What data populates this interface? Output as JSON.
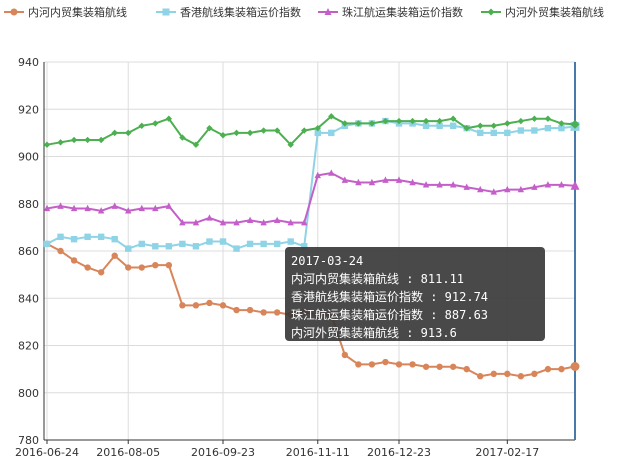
{
  "chart_data": {
    "type": "line",
    "title": "",
    "xlabel": "",
    "ylabel": "",
    "ylim": [
      780,
      940
    ],
    "yticks": [
      780,
      800,
      820,
      840,
      860,
      880,
      900,
      920,
      940
    ],
    "x_tick_labels": [
      "2016-06-24",
      "2016-08-05",
      "2016-09-23",
      "2016-11-11",
      "2016-12-23",
      "2017-02-17"
    ],
    "grid": true,
    "legend_position": "top",
    "x": [
      "2016-06-24",
      "2016-07-01",
      "2016-07-08",
      "2016-07-15",
      "2016-07-22",
      "2016-07-29",
      "2016-08-05",
      "2016-08-12",
      "2016-08-19",
      "2016-08-26",
      "2016-09-02",
      "2016-09-09",
      "2016-09-16",
      "2016-09-23",
      "2016-09-30",
      "2016-10-07",
      "2016-10-14",
      "2016-10-21",
      "2016-10-28",
      "2016-11-04",
      "2016-11-11",
      "2016-11-18",
      "2016-11-25",
      "2016-12-02",
      "2016-12-09",
      "2016-12-16",
      "2016-12-23",
      "2016-12-30",
      "2017-01-06",
      "2017-01-13",
      "2017-01-20",
      "2017-01-27",
      "2017-02-03",
      "2017-02-10",
      "2017-02-17",
      "2017-02-24",
      "2017-03-03",
      "2017-03-10",
      "2017-03-17",
      "2017-03-24"
    ],
    "series": [
      {
        "name": "内河内贸集装箱航线",
        "color": "#d9855a",
        "marker": "circle",
        "values": [
          863,
          860,
          856,
          853,
          851,
          858,
          853,
          853,
          854,
          854,
          837,
          837,
          838,
          837,
          835,
          835,
          834,
          834,
          833,
          834,
          833,
          833,
          816,
          812,
          812,
          813,
          812,
          812,
          811,
          811,
          811,
          810,
          807,
          808,
          808,
          807,
          808,
          810,
          810,
          811.11
        ]
      },
      {
        "name": "香港航线集装箱运价指数",
        "color": "#8fd3e6",
        "marker": "square",
        "values": [
          863,
          866,
          865,
          866,
          866,
          865,
          861,
          863,
          862,
          862,
          863,
          862,
          864,
          864,
          861,
          863,
          863,
          863,
          864,
          862,
          910,
          910,
          913,
          914,
          914,
          915,
          914,
          914,
          913,
          913,
          913,
          912,
          910,
          910,
          910,
          911,
          911,
          912,
          912,
          912.74
        ]
      },
      {
        "name": "珠江航运集装箱运价指数",
        "color": "#c45fc9",
        "marker": "triangle",
        "values": [
          878,
          879,
          878,
          878,
          877,
          879,
          877,
          878,
          878,
          879,
          872,
          872,
          874,
          872,
          872,
          873,
          872,
          873,
          872,
          872,
          892,
          893,
          890,
          889,
          889,
          890,
          890,
          889,
          888,
          888,
          888,
          887,
          886,
          885,
          886,
          886,
          887,
          888,
          888,
          887.63
        ]
      },
      {
        "name": "内河外贸集装箱航线",
        "color": "#4caf50",
        "marker": "diamond",
        "values": [
          905,
          906,
          907,
          907,
          907,
          910,
          910,
          913,
          914,
          916,
          908,
          905,
          912,
          909,
          910,
          910,
          911,
          911,
          905,
          911,
          912,
          917,
          914,
          914,
          914,
          915,
          915,
          915,
          915,
          915,
          916,
          912,
          913,
          913,
          914,
          915,
          916,
          916,
          914,
          913.6
        ]
      }
    ],
    "tooltip": {
      "date": "2017-03-24",
      "lines": [
        "内河内贸集装箱航线 : 811.11",
        "香港航线集装箱运价指数 : 912.74",
        "珠江航运集装箱运价指数 : 887.63",
        "内河外贸集装箱航线 : 913.6"
      ]
    }
  }
}
